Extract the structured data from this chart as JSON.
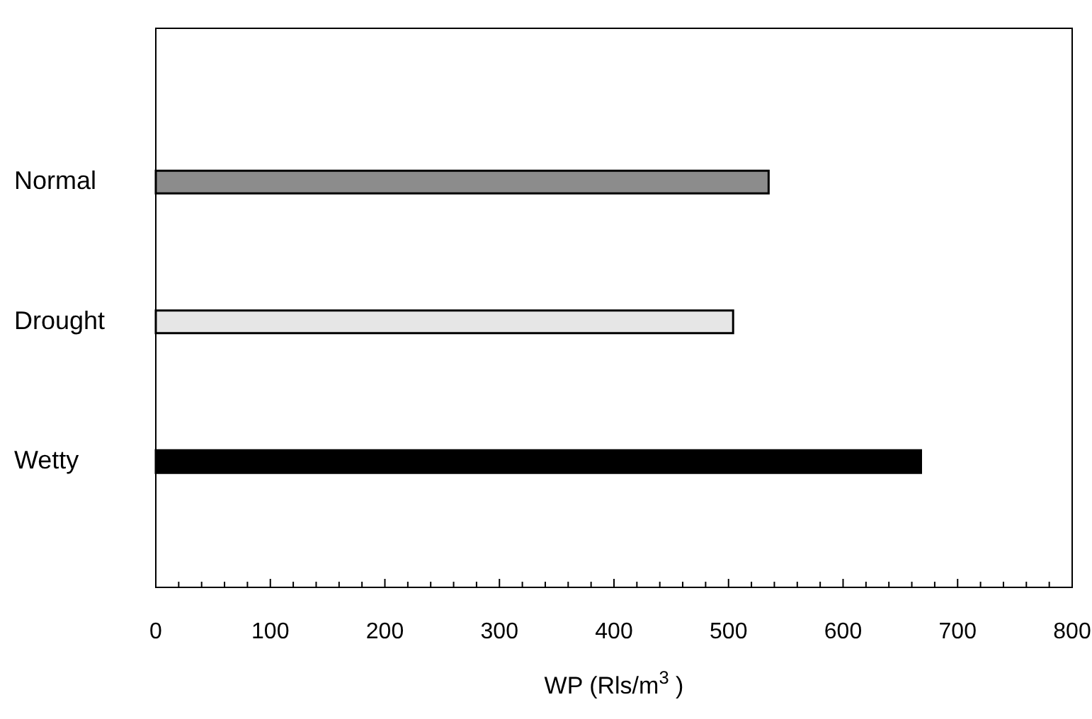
{
  "chart_data": {
    "type": "bar",
    "orientation": "horizontal",
    "categories": [
      "Normal",
      "Drought",
      "Wetty"
    ],
    "values": [
      535,
      504,
      668
    ],
    "colors": [
      "#8c8c8c",
      "#e6e6e6",
      "#000000"
    ],
    "xlabel": "WP (Rls/m$^{3}$ )",
    "xlim": [
      0,
      800
    ],
    "xticks": [
      0,
      {
        "value": 20,
        "label": null
      },
      {
        "value": 40,
        "label": null
      },
      {
        "value": 60,
        "label": null
      },
      {
        "value": 80,
        "label": null
      },
      100,
      {
        "value": 120,
        "label": null
      },
      {
        "value": 140,
        "label": null
      },
      {
        "value": 160,
        "label": null
      },
      {
        "value": 180,
        "label": null
      },
      200,
      {
        "value": 220,
        "label": null
      },
      {
        "value": 240,
        "label": null
      },
      {
        "value": 260,
        "label": null
      },
      {
        "value": 280,
        "label": null
      },
      300,
      {
        "value": 320,
        "label": null
      },
      {
        "value": 340,
        "label": null
      },
      {
        "value": 360,
        "label": null
      },
      {
        "value": 380,
        "label": null
      },
      400,
      {
        "value": 420,
        "label": null
      },
      {
        "value": 440,
        "label": null
      },
      {
        "value": 460,
        "label": null
      },
      {
        "value": 480,
        "label": null
      },
      500,
      {
        "value": 520,
        "label": null
      },
      {
        "value": 540,
        "label": null
      },
      {
        "value": 560,
        "label": null
      },
      {
        "value": 580,
        "label": null
      },
      600,
      {
        "value": 620,
        "label": null
      },
      {
        "value": 640,
        "label": null
      },
      {
        "value": 660,
        "label": null
      },
      {
        "value": 680,
        "label": null
      },
      700,
      {
        "value": 720,
        "label": null
      },
      {
        "value": 740,
        "label": null
      },
      {
        "value": 760,
        "label": null
      },
      {
        "value": 780,
        "label": null
      },
      800
    ],
    "grid": false
  }
}
